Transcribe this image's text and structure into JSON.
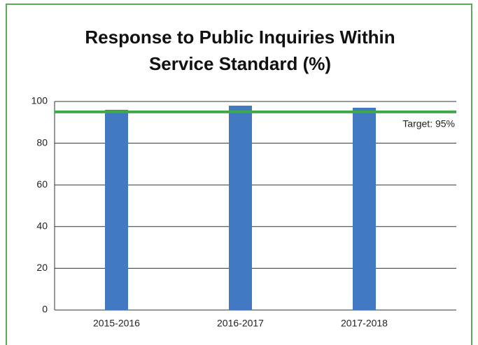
{
  "chart_data": {
    "type": "bar",
    "title": [
      "Response to Public Inquiries Within",
      "Service Standard (%)"
    ],
    "categories": [
      "2015-2016",
      "2016-2017",
      "2017-2018"
    ],
    "values": [
      96,
      98,
      97
    ],
    "color": "#4179c3",
    "ylim": [
      0,
      100
    ],
    "yticks": [
      0,
      20,
      40,
      60,
      80,
      100
    ],
    "grid": true,
    "target": {
      "value": 95,
      "label": "Target: 95%",
      "color": "#3ea84b"
    }
  }
}
